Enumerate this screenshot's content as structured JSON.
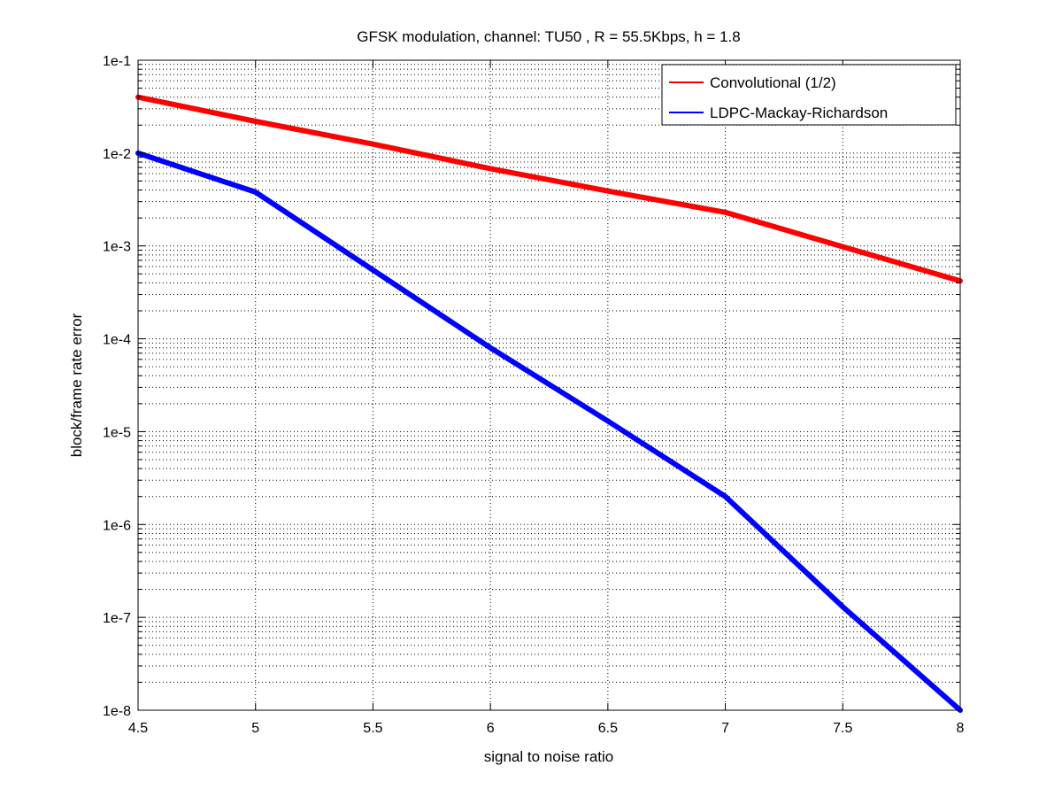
{
  "chart_data": {
    "type": "line",
    "title": "GFSK modulation, channel: TU50 , R = 55.5Kbps, h = 1.8",
    "xlabel": "signal to noise ratio",
    "ylabel": "block/frame rate error",
    "xlim": [
      4.5,
      8
    ],
    "ylim": [
      1e-08,
      0.1
    ],
    "yscale": "log",
    "grid": true,
    "legend_position": "top-right",
    "x_ticks": [
      4.5,
      5,
      5.5,
      6,
      6.5,
      7,
      7.5,
      8
    ],
    "x_tick_labels": [
      "4.5",
      "5",
      "5.5",
      "6",
      "6.5",
      "7",
      "7.5",
      "8"
    ],
    "y_ticks": [
      1e-08,
      1e-07,
      1e-06,
      1e-05,
      0.0001,
      0.001,
      0.01,
      0.1
    ],
    "y_tick_labels": [
      "1e-8",
      "1e-7",
      "1e-6",
      "1e-5",
      "1e-4",
      "1e-3",
      "1e-2",
      "1e-1"
    ],
    "series": [
      {
        "name": "Convolutional (1/2)",
        "color": "#ff0000",
        "x": [
          4.5,
          5,
          5.5,
          6,
          6.5,
          7,
          7.5,
          8
        ],
        "y": [
          0.04,
          0.022,
          0.0125,
          0.0068,
          0.0039,
          0.0023,
          0.00098,
          0.00042
        ]
      },
      {
        "name": "LDPC-Mackay-Richardson",
        "color": "#0000ff",
        "x": [
          4.5,
          5,
          5.5,
          6,
          6.5,
          7,
          7.5,
          8
        ],
        "y": [
          0.01,
          0.0038,
          0.00055,
          8e-05,
          1.3e-05,
          2e-06,
          1.3e-07,
          1e-08
        ]
      }
    ]
  }
}
